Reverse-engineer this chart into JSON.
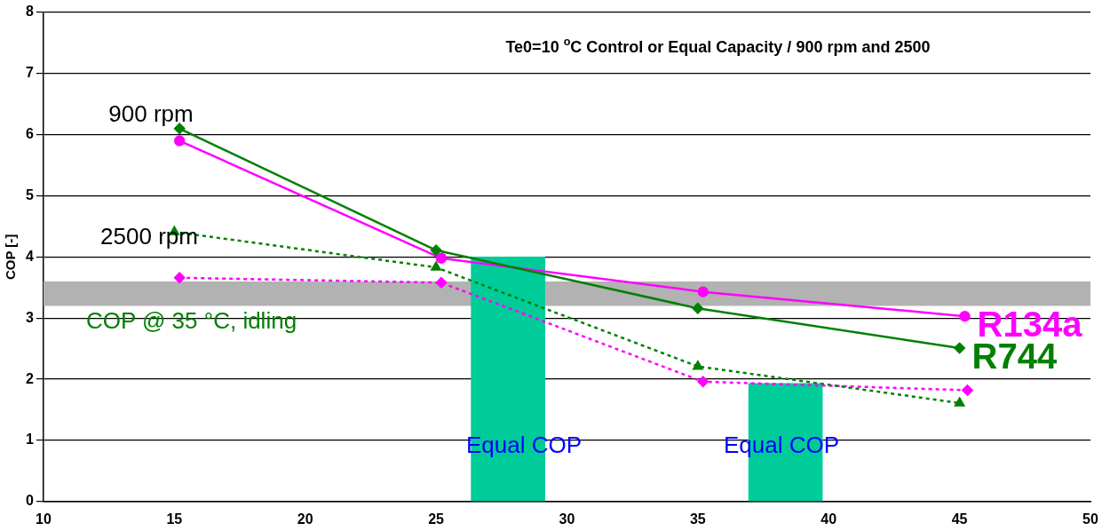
{
  "chart_data": {
    "type": "line",
    "title": "Te0=10 $^{o}$C Control or Equal Capacity / 900 rpm and 2500",
    "ylabel": "COP [-]",
    "xlim": [
      10,
      50
    ],
    "xticks": [
      10,
      15,
      20,
      25,
      30,
      35,
      40,
      45,
      50
    ],
    "ylim": [
      0,
      8
    ],
    "yticks": [
      0,
      1,
      2,
      3,
      4,
      5,
      6,
      7,
      8
    ],
    "grid": "y",
    "legend": false,
    "series": [
      {
        "type": "bar",
        "color": "#00cc99",
        "x": [
          27.75,
          38.35
        ],
        "values": [
          4.0,
          1.93
        ]
      },
      {
        "name": "R744",
        "color": "#008000",
        "x": [
          15.2,
          25,
          35,
          45
        ],
        "values": [
          6.1,
          4.11,
          3.16,
          2.51
        ],
        "marker": "diamond",
        "line_style": "solid"
      },
      {
        "name": "R134a",
        "color": "#ff00ff",
        "x": [
          15.2,
          25.2,
          35.2,
          45.2
        ],
        "values": [
          5.9,
          3.98,
          3.43,
          3.03
        ],
        "marker": "circle",
        "line_style": "solid"
      },
      {
        "color": "#008000",
        "x": [
          15,
          25,
          35,
          45
        ],
        "values": [
          4.41,
          3.83,
          2.21,
          1.61
        ],
        "marker": "triangle",
        "line_style": "dotted"
      },
      {
        "color": "#ff00ff",
        "x": [
          15.2,
          25.2,
          35.2,
          45.3
        ],
        "values": [
          3.66,
          3.58,
          1.96,
          1.82
        ],
        "marker": "diamond",
        "line_style": "dotted"
      }
    ],
    "bands": [
      {
        "axis": "y",
        "from": 3.2,
        "to": 3.6,
        "label": "COP @ 35 °C, idling",
        "color": "#b2b2b2"
      }
    ],
    "annotations": [
      "900 rpm",
      "2500 rpm",
      "Equal COP",
      "Equal COP"
    ]
  }
}
